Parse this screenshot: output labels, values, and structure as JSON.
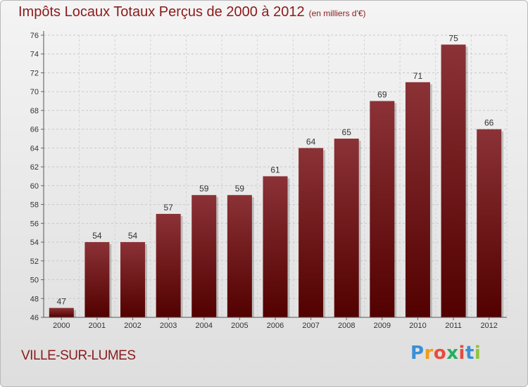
{
  "title": "Impôts Locaux Totaux Perçus de 2000 à 2012",
  "subtitle": "(en milliers d'€)",
  "commune": "VILLE-SUR-LUMES",
  "logo": {
    "letters": [
      "P",
      "r",
      "o",
      "x",
      "i",
      "t",
      "i"
    ],
    "colors": [
      "#3a8fd6",
      "#f39c12",
      "#e74c3c",
      "#27ae60",
      "#e74c3c",
      "#3a8fd6",
      "#8fc43c"
    ]
  },
  "chart_data": {
    "type": "bar",
    "categories": [
      "2000",
      "2001",
      "2002",
      "2003",
      "2004",
      "2005",
      "2006",
      "2007",
      "2008",
      "2009",
      "2010",
      "2011",
      "2012"
    ],
    "values": [
      47,
      54,
      54,
      57,
      59,
      59,
      61,
      64,
      65,
      69,
      71,
      75,
      66
    ],
    "ylim": [
      46,
      76
    ],
    "yticks": [
      46,
      48,
      50,
      52,
      54,
      56,
      58,
      60,
      62,
      64,
      66,
      68,
      70,
      72,
      74,
      76
    ],
    "grid": true,
    "bar_color_top": "#8b3236",
    "bar_color_bottom": "#520000"
  }
}
